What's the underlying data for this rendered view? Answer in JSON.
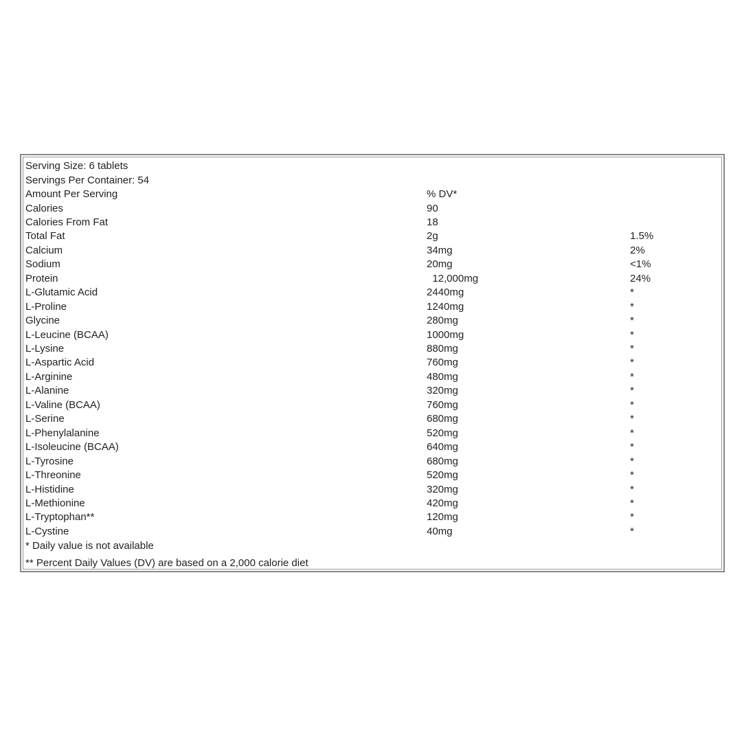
{
  "header": {
    "serving_size": "Serving Size: 6 tablets",
    "servings_per_container": "Servings Per Container: 54",
    "amount_per_serving": "Amount Per Serving",
    "dv_header": "% DV*"
  },
  "rows": [
    {
      "name": "Calories",
      "amount": "90",
      "dv": ""
    },
    {
      "name": "Calories From Fat",
      "amount": "18",
      "dv": ""
    },
    {
      "name": "Total Fat",
      "amount": "2g",
      "dv": "1.5%"
    },
    {
      "name": "Calcium",
      "amount": "34mg",
      "dv": "2%"
    },
    {
      "name": "Sodium",
      "amount": "20mg",
      "dv": "<1%"
    },
    {
      "name": "Protein",
      "amount": "  12,000mg",
      "dv": "24%"
    },
    {
      "name": "L-Glutamic Acid",
      "amount": "2440mg",
      "dv": "*"
    },
    {
      "name": "L-Proline",
      "amount": "1240mg",
      "dv": "*"
    },
    {
      "name": "Glycine",
      "amount": "280mg",
      "dv": "*"
    },
    {
      "name": "L-Leucine (BCAA)",
      "amount": "1000mg",
      "dv": "*"
    },
    {
      "name": "L-Lysine",
      "amount": "880mg",
      "dv": "*"
    },
    {
      "name": "L-Aspartic Acid",
      "amount": "760mg",
      "dv": "*"
    },
    {
      "name": "L-Arginine",
      "amount": "480mg",
      "dv": "*"
    },
    {
      "name": "L-Alanine",
      "amount": "320mg",
      "dv": "*"
    },
    {
      "name": "L-Valine (BCAA)",
      "amount": "760mg",
      "dv": "*"
    },
    {
      "name": "L-Serine",
      "amount": "680mg",
      "dv": "*"
    },
    {
      "name": "L-Phenylalanine",
      "amount": "520mg",
      "dv": "*"
    },
    {
      "name": "L-Isoleucine (BCAA)",
      "amount": "640mg",
      "dv": "*"
    },
    {
      "name": "L-Tyrosine",
      "amount": "680mg",
      "dv": "*"
    },
    {
      "name": "L-Threonine",
      "amount": "520mg",
      "dv": "*"
    },
    {
      "name": "L-Histidine",
      "amount": "320mg",
      "dv": "*"
    },
    {
      "name": "L-Methionine",
      "amount": "420mg",
      "dv": "*"
    },
    {
      "name": "L-Tryptophan**",
      "amount": "120mg",
      "dv": "*"
    },
    {
      "name": "L-Cystine",
      "amount": "40mg",
      "dv": "*"
    }
  ],
  "footnotes": {
    "daily_value": "* Daily value is not available",
    "percent_dv": "** Percent Daily Values (DV) are based on a 2,000 calorie diet"
  }
}
